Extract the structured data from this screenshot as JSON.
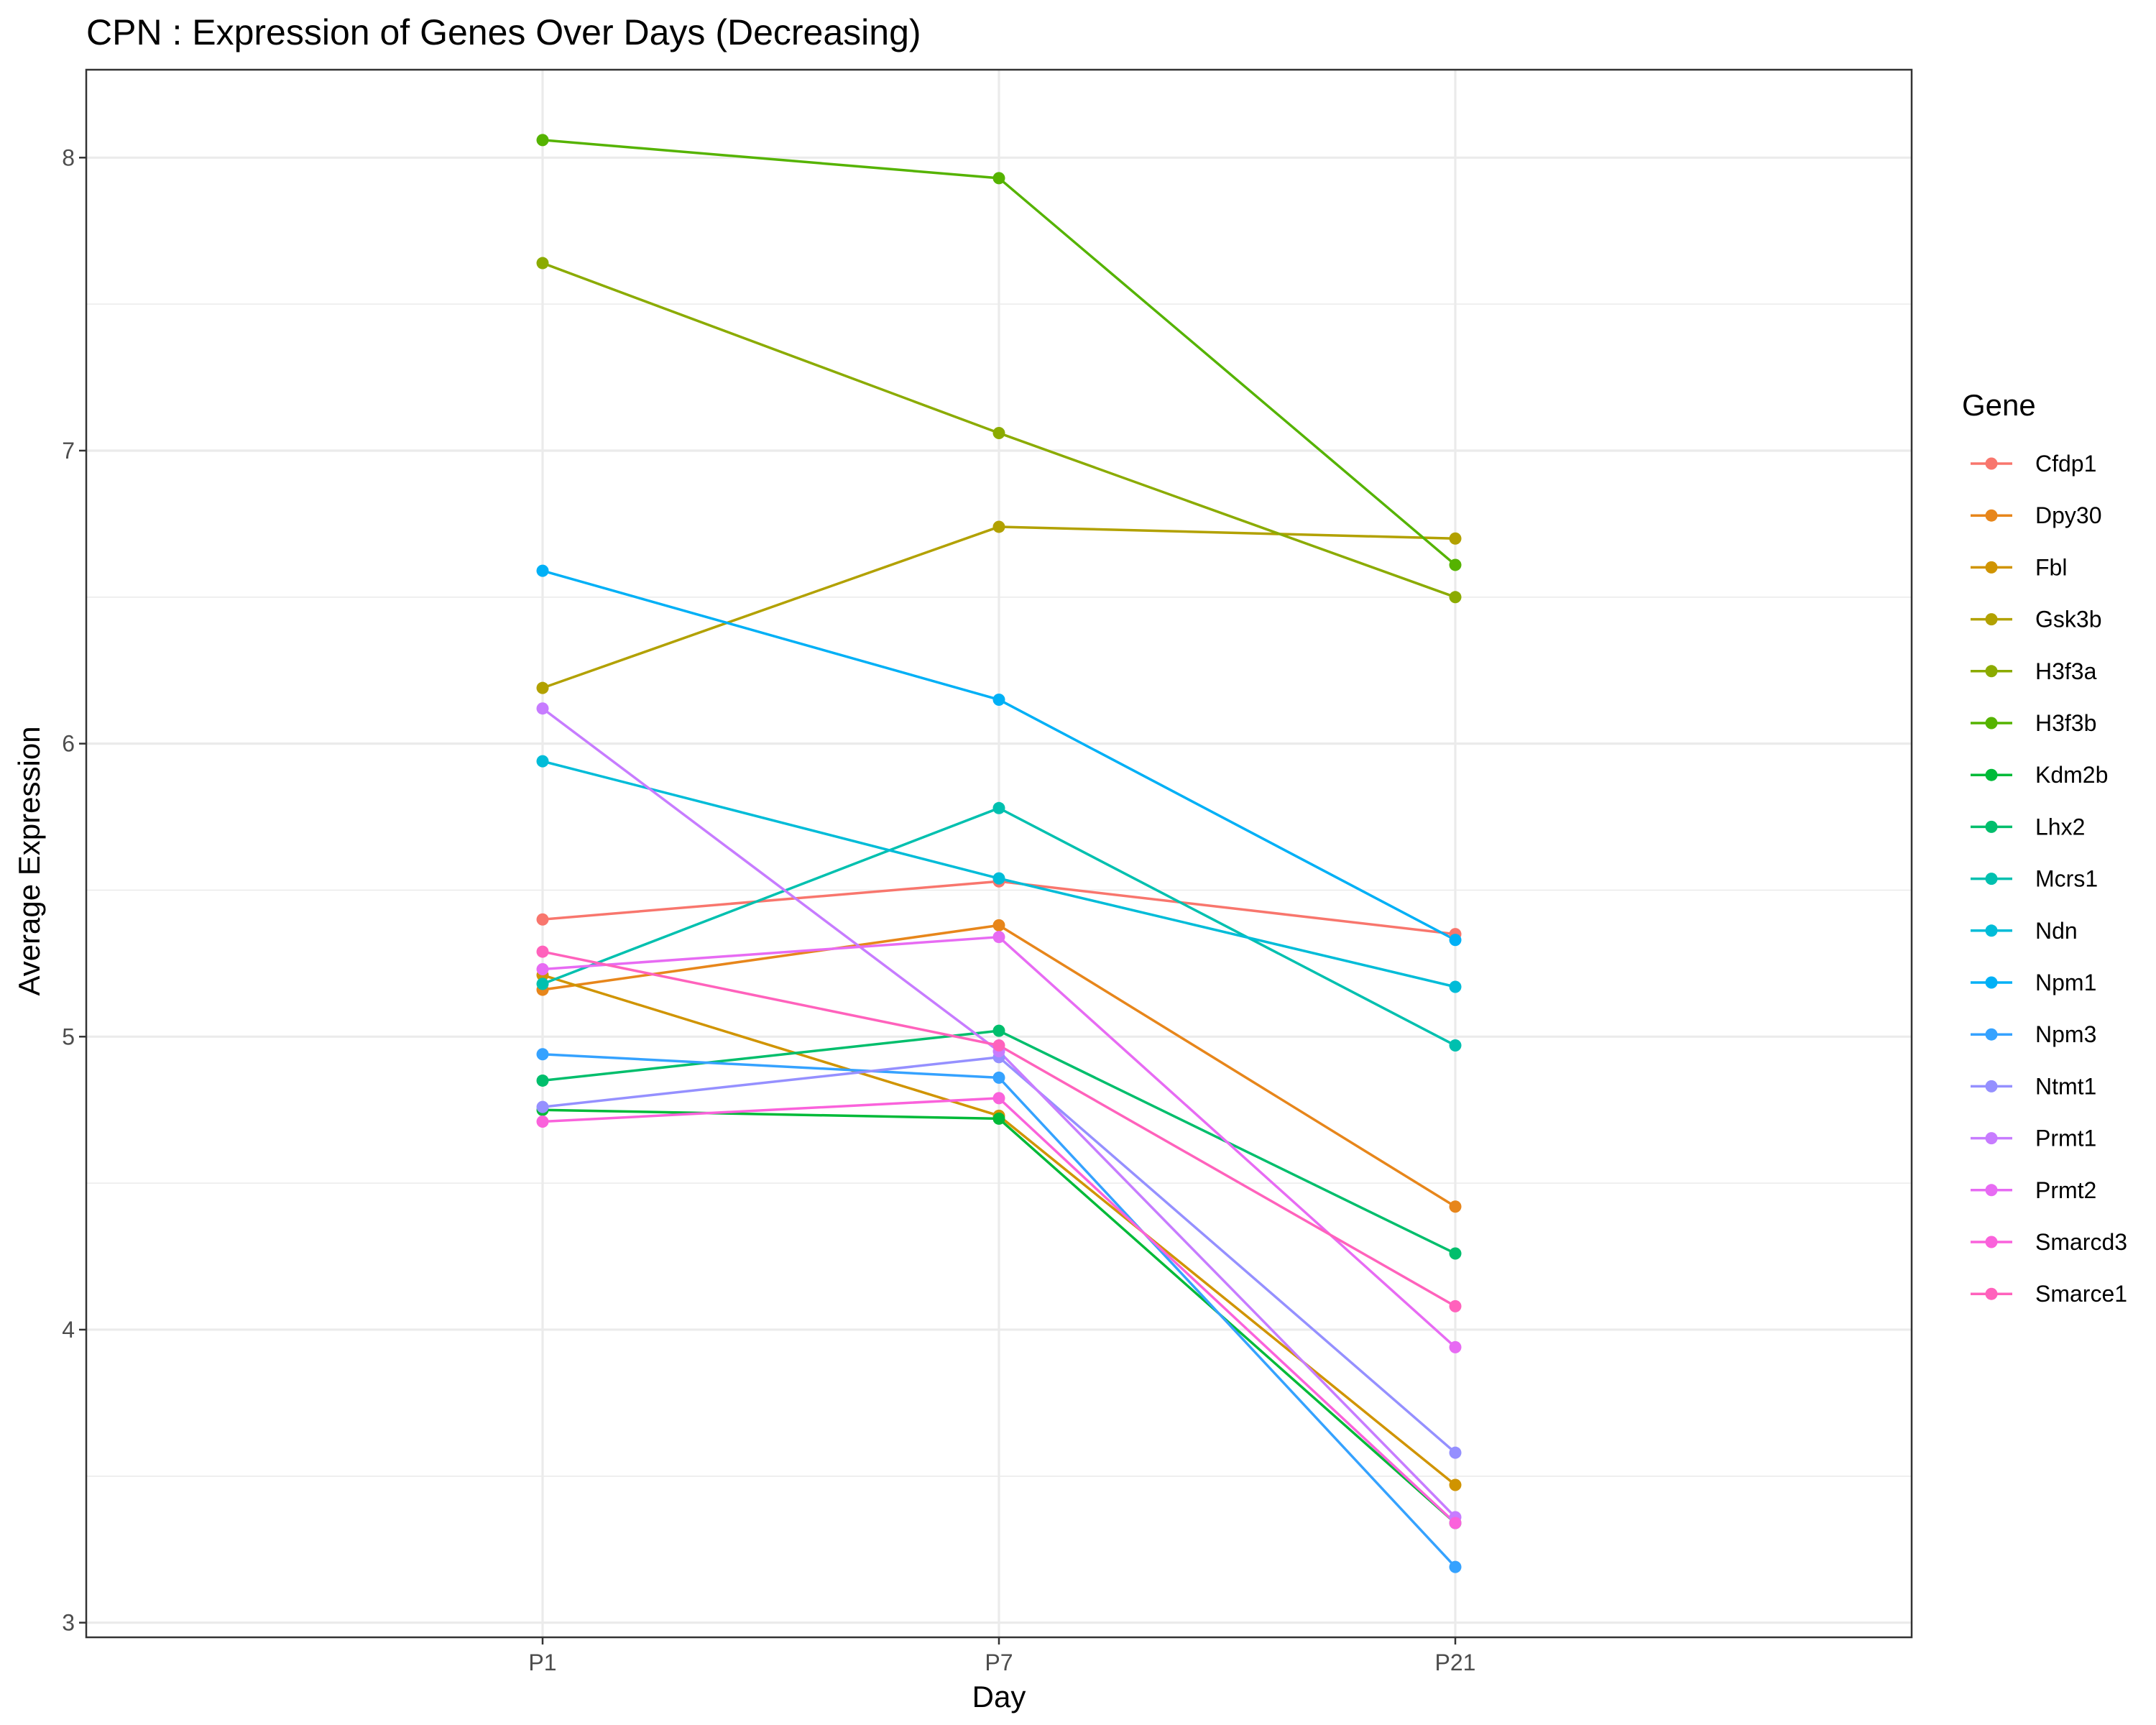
{
  "chart_data": {
    "type": "line",
    "title": "CPN : Expression of Genes Over Days (Decreasing)",
    "xlabel": "Day",
    "ylabel": "Average Expression",
    "categories": [
      "P1",
      "P7",
      "P21"
    ],
    "ylim": [
      2.95,
      8.3
    ],
    "yticks": [
      3,
      4,
      5,
      6,
      7,
      8
    ],
    "grid": true,
    "legend_title": "Gene",
    "legend_position": "right",
    "series": [
      {
        "name": "Cfdp1",
        "color": "#F8766D",
        "values": [
          5.4,
          5.53,
          5.35
        ]
      },
      {
        "name": "Dpy30",
        "color": "#E7861B",
        "values": [
          5.16,
          5.38,
          4.42
        ]
      },
      {
        "name": "Fbl",
        "color": "#D09400",
        "values": [
          5.21,
          4.73,
          3.47
        ]
      },
      {
        "name": "Gsk3b",
        "color": "#B2A100",
        "values": [
          6.19,
          6.74,
          6.7
        ]
      },
      {
        "name": "H3f3a",
        "color": "#8BAB00",
        "values": [
          7.64,
          7.06,
          6.5
        ]
      },
      {
        "name": "H3f3b",
        "color": "#55B300",
        "values": [
          8.06,
          7.93,
          6.61
        ]
      },
      {
        "name": "Kdm2b",
        "color": "#00BA38",
        "values": [
          4.75,
          4.72,
          3.34
        ]
      },
      {
        "name": "Lhx2",
        "color": "#00BE6C",
        "values": [
          4.85,
          5.02,
          4.26
        ]
      },
      {
        "name": "Mcrs1",
        "color": "#00C0AF",
        "values": [
          5.18,
          5.78,
          4.97
        ]
      },
      {
        "name": "Ndn",
        "color": "#00BCD8",
        "values": [
          5.94,
          5.54,
          5.17
        ]
      },
      {
        "name": "Npm1",
        "color": "#00B0F6",
        "values": [
          6.59,
          6.15,
          5.33
        ]
      },
      {
        "name": "Npm3",
        "color": "#35A2FF",
        "values": [
          4.94,
          4.86,
          3.19
        ]
      },
      {
        "name": "Ntmt1",
        "color": "#9590FF",
        "values": [
          4.76,
          4.93,
          3.58
        ]
      },
      {
        "name": "Prmt1",
        "color": "#C77CFF",
        "values": [
          6.12,
          4.95,
          3.36
        ]
      },
      {
        "name": "Prmt2",
        "color": "#E76BF3",
        "values": [
          5.23,
          5.34,
          3.94
        ]
      },
      {
        "name": "Smarcd3",
        "color": "#FA62DB",
        "values": [
          4.71,
          4.79,
          3.34
        ]
      },
      {
        "name": "Smarce1",
        "color": "#FF62BC",
        "values": [
          5.29,
          4.97,
          4.08
        ]
      }
    ]
  }
}
